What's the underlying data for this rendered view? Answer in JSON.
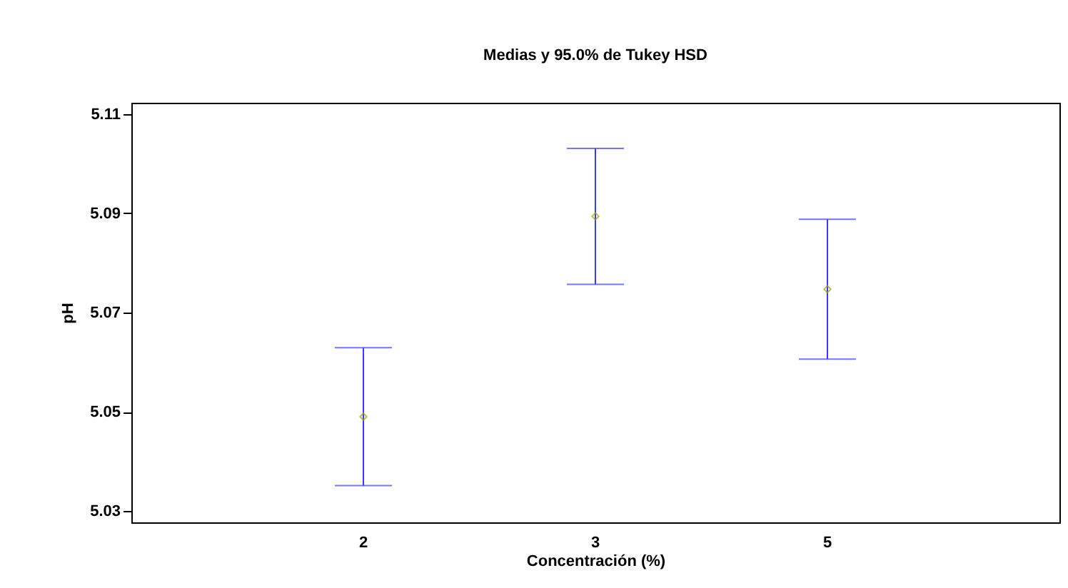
{
  "chart_data": {
    "type": "scatter",
    "title": "Medias y 95.0% de Tukey HSD",
    "xlabel": "Concentración (%)",
    "ylabel": "pH",
    "categories": [
      "2",
      "3",
      "5"
    ],
    "series": [
      {
        "color": "#a0a000",
        "values": [
          5.049,
          5.0894,
          5.0747
        ],
        "errors": [
          0.0139,
          0.0137,
          0.0141
        ]
      }
    ],
    "ylim": [
      5.0277,
      5.1123
    ],
    "yticks": [
      5.03,
      5.05,
      5.07,
      5.09,
      5.11
    ],
    "grid": false,
    "marker": "diamond"
  }
}
